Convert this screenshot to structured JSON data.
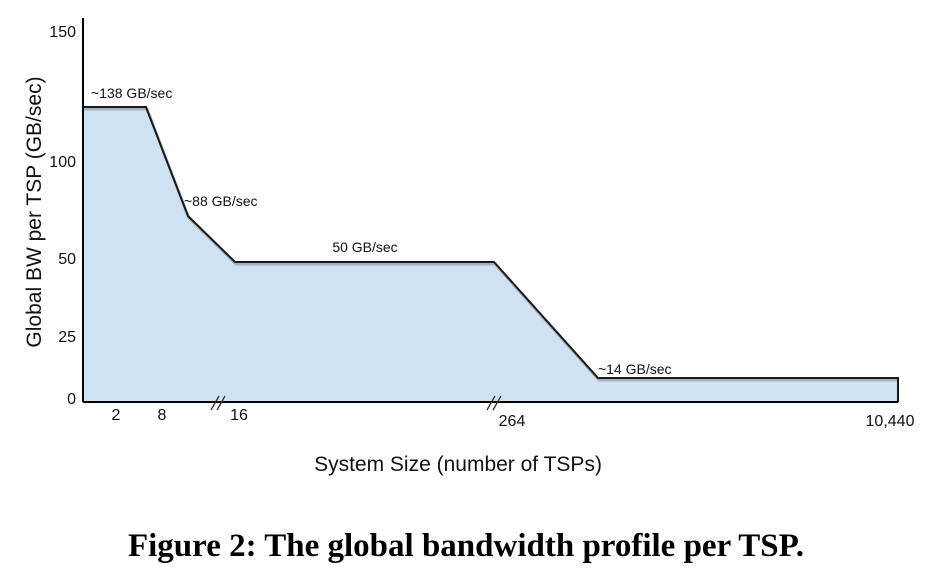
{
  "chart_data": {
    "type": "area",
    "xlabel": "System Size (number of TSPs)",
    "ylabel": "Global BW per TSP (GB/sec)",
    "y_ticks": [
      150,
      100,
      50,
      25,
      0
    ],
    "x_ticks": [
      "2",
      "8",
      "16",
      "264",
      "10,440"
    ],
    "x_axis_breaks": [
      "between 8 and 16",
      "before 264"
    ],
    "annotations": [
      "~138 GB/sec",
      "~88 GB/sec",
      "50 GB/sec",
      "~14 GB/sec"
    ],
    "profile": [
      {
        "x": "start",
        "y": 138
      },
      {
        "x": "after 8",
        "y": 138
      },
      {
        "x": "approx 12",
        "y": 88
      },
      {
        "x": "16",
        "y": 50
      },
      {
        "x": "before 264",
        "y": 50
      },
      {
        "x": "after 264",
        "y": 14
      },
      {
        "x": "10,440",
        "y": 14
      }
    ],
    "colors": {
      "fill": "#cfe2f3",
      "line": "#1a1a1a"
    }
  },
  "caption": "Figure 2: The global bandwidth profile per TSP."
}
